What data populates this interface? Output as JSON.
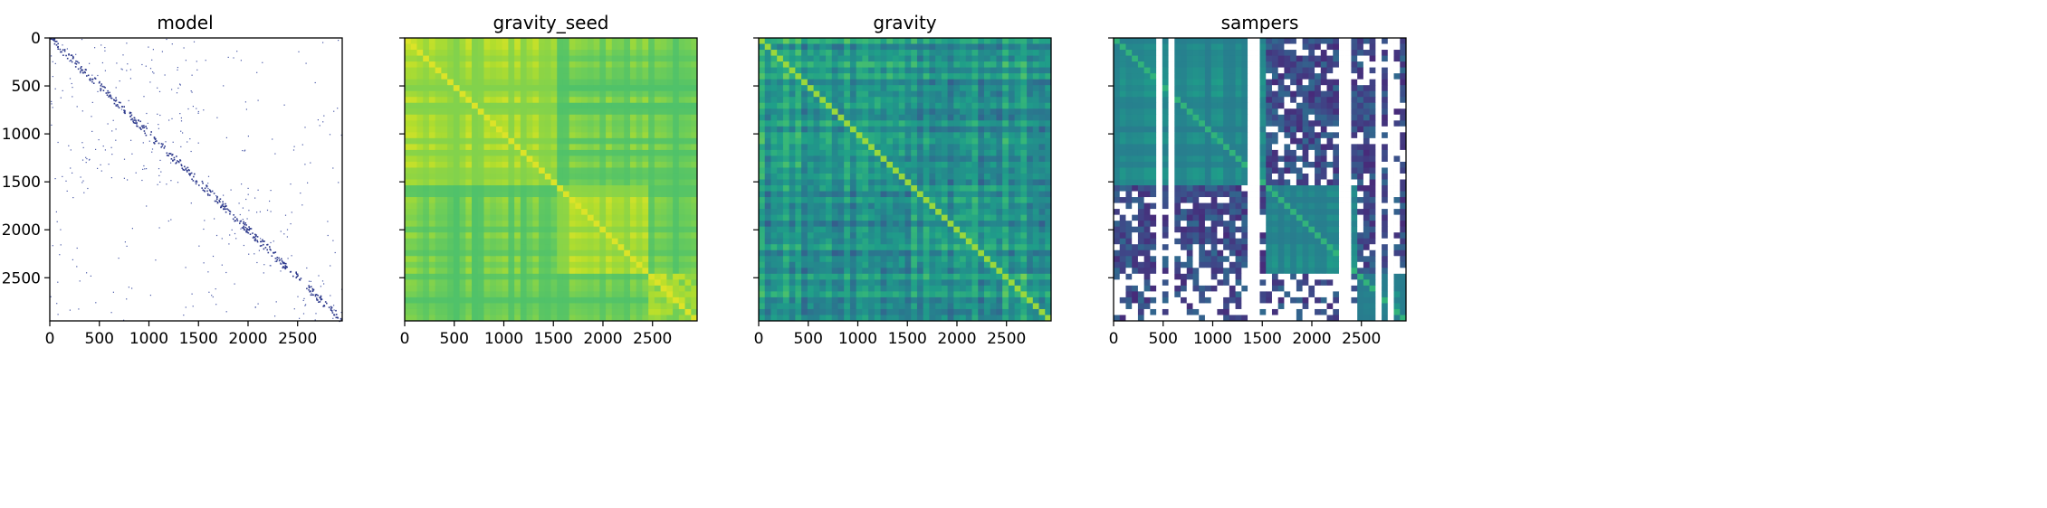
{
  "chart_data": [
    {
      "type": "heatmap",
      "title": "model",
      "pattern": "sparse",
      "colormap": "viridis_r-like (white background, dark blue dots)",
      "x_ticks": [
        0,
        500,
        1000,
        1500,
        2000,
        2500
      ],
      "y_ticks": [
        0,
        500,
        1000,
        1500,
        2000,
        2500
      ],
      "x_tick_labels": [
        "0",
        "500",
        "1000",
        "1500",
        "2000",
        "2500"
      ],
      "y_tick_labels": [
        "0",
        "500",
        "1000",
        "1500",
        "2000",
        "2500"
      ],
      "xlim": [
        0,
        2950
      ],
      "ylim": [
        2950,
        0
      ],
      "block_boundaries": [
        0,
        1500,
        2450,
        2950
      ],
      "grid": false
    },
    {
      "type": "heatmap",
      "title": "gravity_seed",
      "pattern": "blocky",
      "colormap": "viridis",
      "x_ticks": [
        0,
        500,
        1000,
        1500,
        2000,
        2500
      ],
      "x_tick_labels": [
        "0",
        "500",
        "1000",
        "1500",
        "2000",
        "2500"
      ],
      "xlim": [
        0,
        2950
      ],
      "ylim": [
        2950,
        0
      ],
      "shared_y": true,
      "block_boundaries": [
        0,
        1500,
        2450,
        2950
      ],
      "grid": false
    },
    {
      "type": "heatmap",
      "title": "gravity",
      "pattern": "noisy",
      "colormap": "viridis",
      "x_ticks": [
        0,
        500,
        1000,
        1500,
        2000,
        2500
      ],
      "x_tick_labels": [
        "0",
        "500",
        "1000",
        "1500",
        "2000",
        "2500"
      ],
      "xlim": [
        0,
        2950
      ],
      "ylim": [
        2950,
        0
      ],
      "shared_y": true,
      "block_boundaries": [
        0,
        1500,
        2450,
        2950
      ],
      "grid": false
    },
    {
      "type": "heatmap",
      "title": "sampers",
      "pattern": "masked",
      "colormap": "viridis (with white masked cells)",
      "x_ticks": [
        0,
        500,
        1000,
        1500,
        2000,
        2500
      ],
      "x_tick_labels": [
        "0",
        "500",
        "1000",
        "1500",
        "2000",
        "2500"
      ],
      "xlim": [
        0,
        2950
      ],
      "ylim": [
        2950,
        0
      ],
      "shared_y": true,
      "block_boundaries": [
        0,
        1500,
        2450,
        2950
      ],
      "grid": false
    }
  ]
}
